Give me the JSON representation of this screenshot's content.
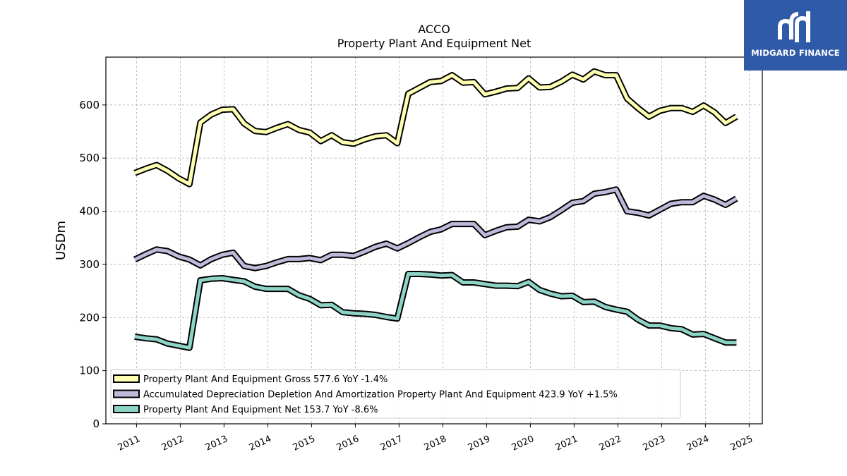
{
  "chart_data": {
    "type": "line",
    "title": "ACCO",
    "subtitle": "Property Plant And Equipment Net",
    "xlabel": "",
    "ylabel": "USDm",
    "xlim": [
      2010.3,
      2025.3
    ],
    "ylim": [
      0,
      690
    ],
    "yticks": [
      0,
      100,
      200,
      300,
      400,
      500,
      600
    ],
    "xticks": [
      "2011",
      "2012",
      "2013",
      "2014",
      "2015",
      "2016",
      "2017",
      "2018",
      "2019",
      "2020",
      "2021",
      "2022",
      "2023",
      "2024",
      "2025"
    ],
    "grid": true,
    "legend_position": "lower-left",
    "x": [
      2010.96,
      2011.21,
      2011.46,
      2011.71,
      2011.96,
      2012.21,
      2012.46,
      2012.71,
      2012.96,
      2013.21,
      2013.46,
      2013.71,
      2013.96,
      2014.21,
      2014.46,
      2014.71,
      2014.96,
      2015.21,
      2015.46,
      2015.71,
      2015.96,
      2016.21,
      2016.46,
      2016.71,
      2016.96,
      2017.21,
      2017.46,
      2017.71,
      2017.96,
      2018.21,
      2018.46,
      2018.71,
      2018.96,
      2019.21,
      2019.46,
      2019.71,
      2019.96,
      2020.21,
      2020.46,
      2020.71,
      2020.96,
      2021.21,
      2021.46,
      2021.71,
      2021.96,
      2022.21,
      2022.46,
      2022.71,
      2022.96,
      2023.21,
      2023.46,
      2023.71,
      2023.96,
      2024.21,
      2024.46,
      2024.71
    ],
    "series": [
      {
        "name": "Property Plant And Equipment Gross",
        "legend_label": "Property Plant And Equipment Gross  577.6 YoY -1.4%",
        "color": "#ffffb3",
        "values": [
          472,
          480,
          487,
          476,
          462,
          451,
          567,
          582,
          591,
          592,
          565,
          551,
          549,
          557,
          564,
          553,
          548,
          532,
          543,
          530,
          527,
          535,
          541,
          543,
          528,
          621,
          632,
          643,
          645,
          656,
          642,
          643,
          620,
          625,
          631,
          632,
          650,
          633,
          634,
          644,
          657,
          648,
          663,
          656,
          656,
          612,
          594,
          578,
          589,
          594,
          594,
          587,
          599,
          586,
          566,
          578
        ]
      },
      {
        "name": "Accumulated Depreciation Depletion And Amortization Property Plant And Equipment",
        "legend_label": "Accumulated Depreciation Depletion And Amortization Property Plant And Equipment  423.9 YoY +1.5%",
        "color": "#bebada",
        "values": [
          309,
          319,
          328,
          325,
          315,
          309,
          298,
          310,
          318,
          322,
          297,
          293,
          297,
          304,
          310,
          310,
          312,
          308,
          318,
          318,
          316,
          324,
          333,
          339,
          330,
          340,
          351,
          361,
          366,
          376,
          376,
          376,
          355,
          363,
          370,
          371,
          384,
          381,
          389,
          402,
          416,
          419,
          433,
          436,
          441,
          400,
          397,
          392,
          403,
          414,
          417,
          417,
          429,
          422,
          412,
          424
        ]
      },
      {
        "name": "Property Plant And Equipment Net",
        "legend_label": "Property Plant And Equipment Net  153.7 YoY -8.6%",
        "color": "#8dd3c7",
        "values": [
          164,
          161,
          159,
          151,
          147,
          143,
          270,
          273,
          274,
          271,
          268,
          258,
          254,
          254,
          254,
          242,
          235,
          223,
          224,
          210,
          208,
          207,
          205,
          201,
          198,
          282,
          282,
          281,
          279,
          280,
          266,
          266,
          263,
          260,
          260,
          259,
          267,
          252,
          245,
          240,
          241,
          229,
          230,
          220,
          215,
          211,
          196,
          185,
          185,
          180,
          178,
          168,
          169,
          161,
          153,
          153
        ]
      }
    ]
  },
  "logo": {
    "text": "MIDGARD FINANCE",
    "background": "#2f5aa8"
  }
}
